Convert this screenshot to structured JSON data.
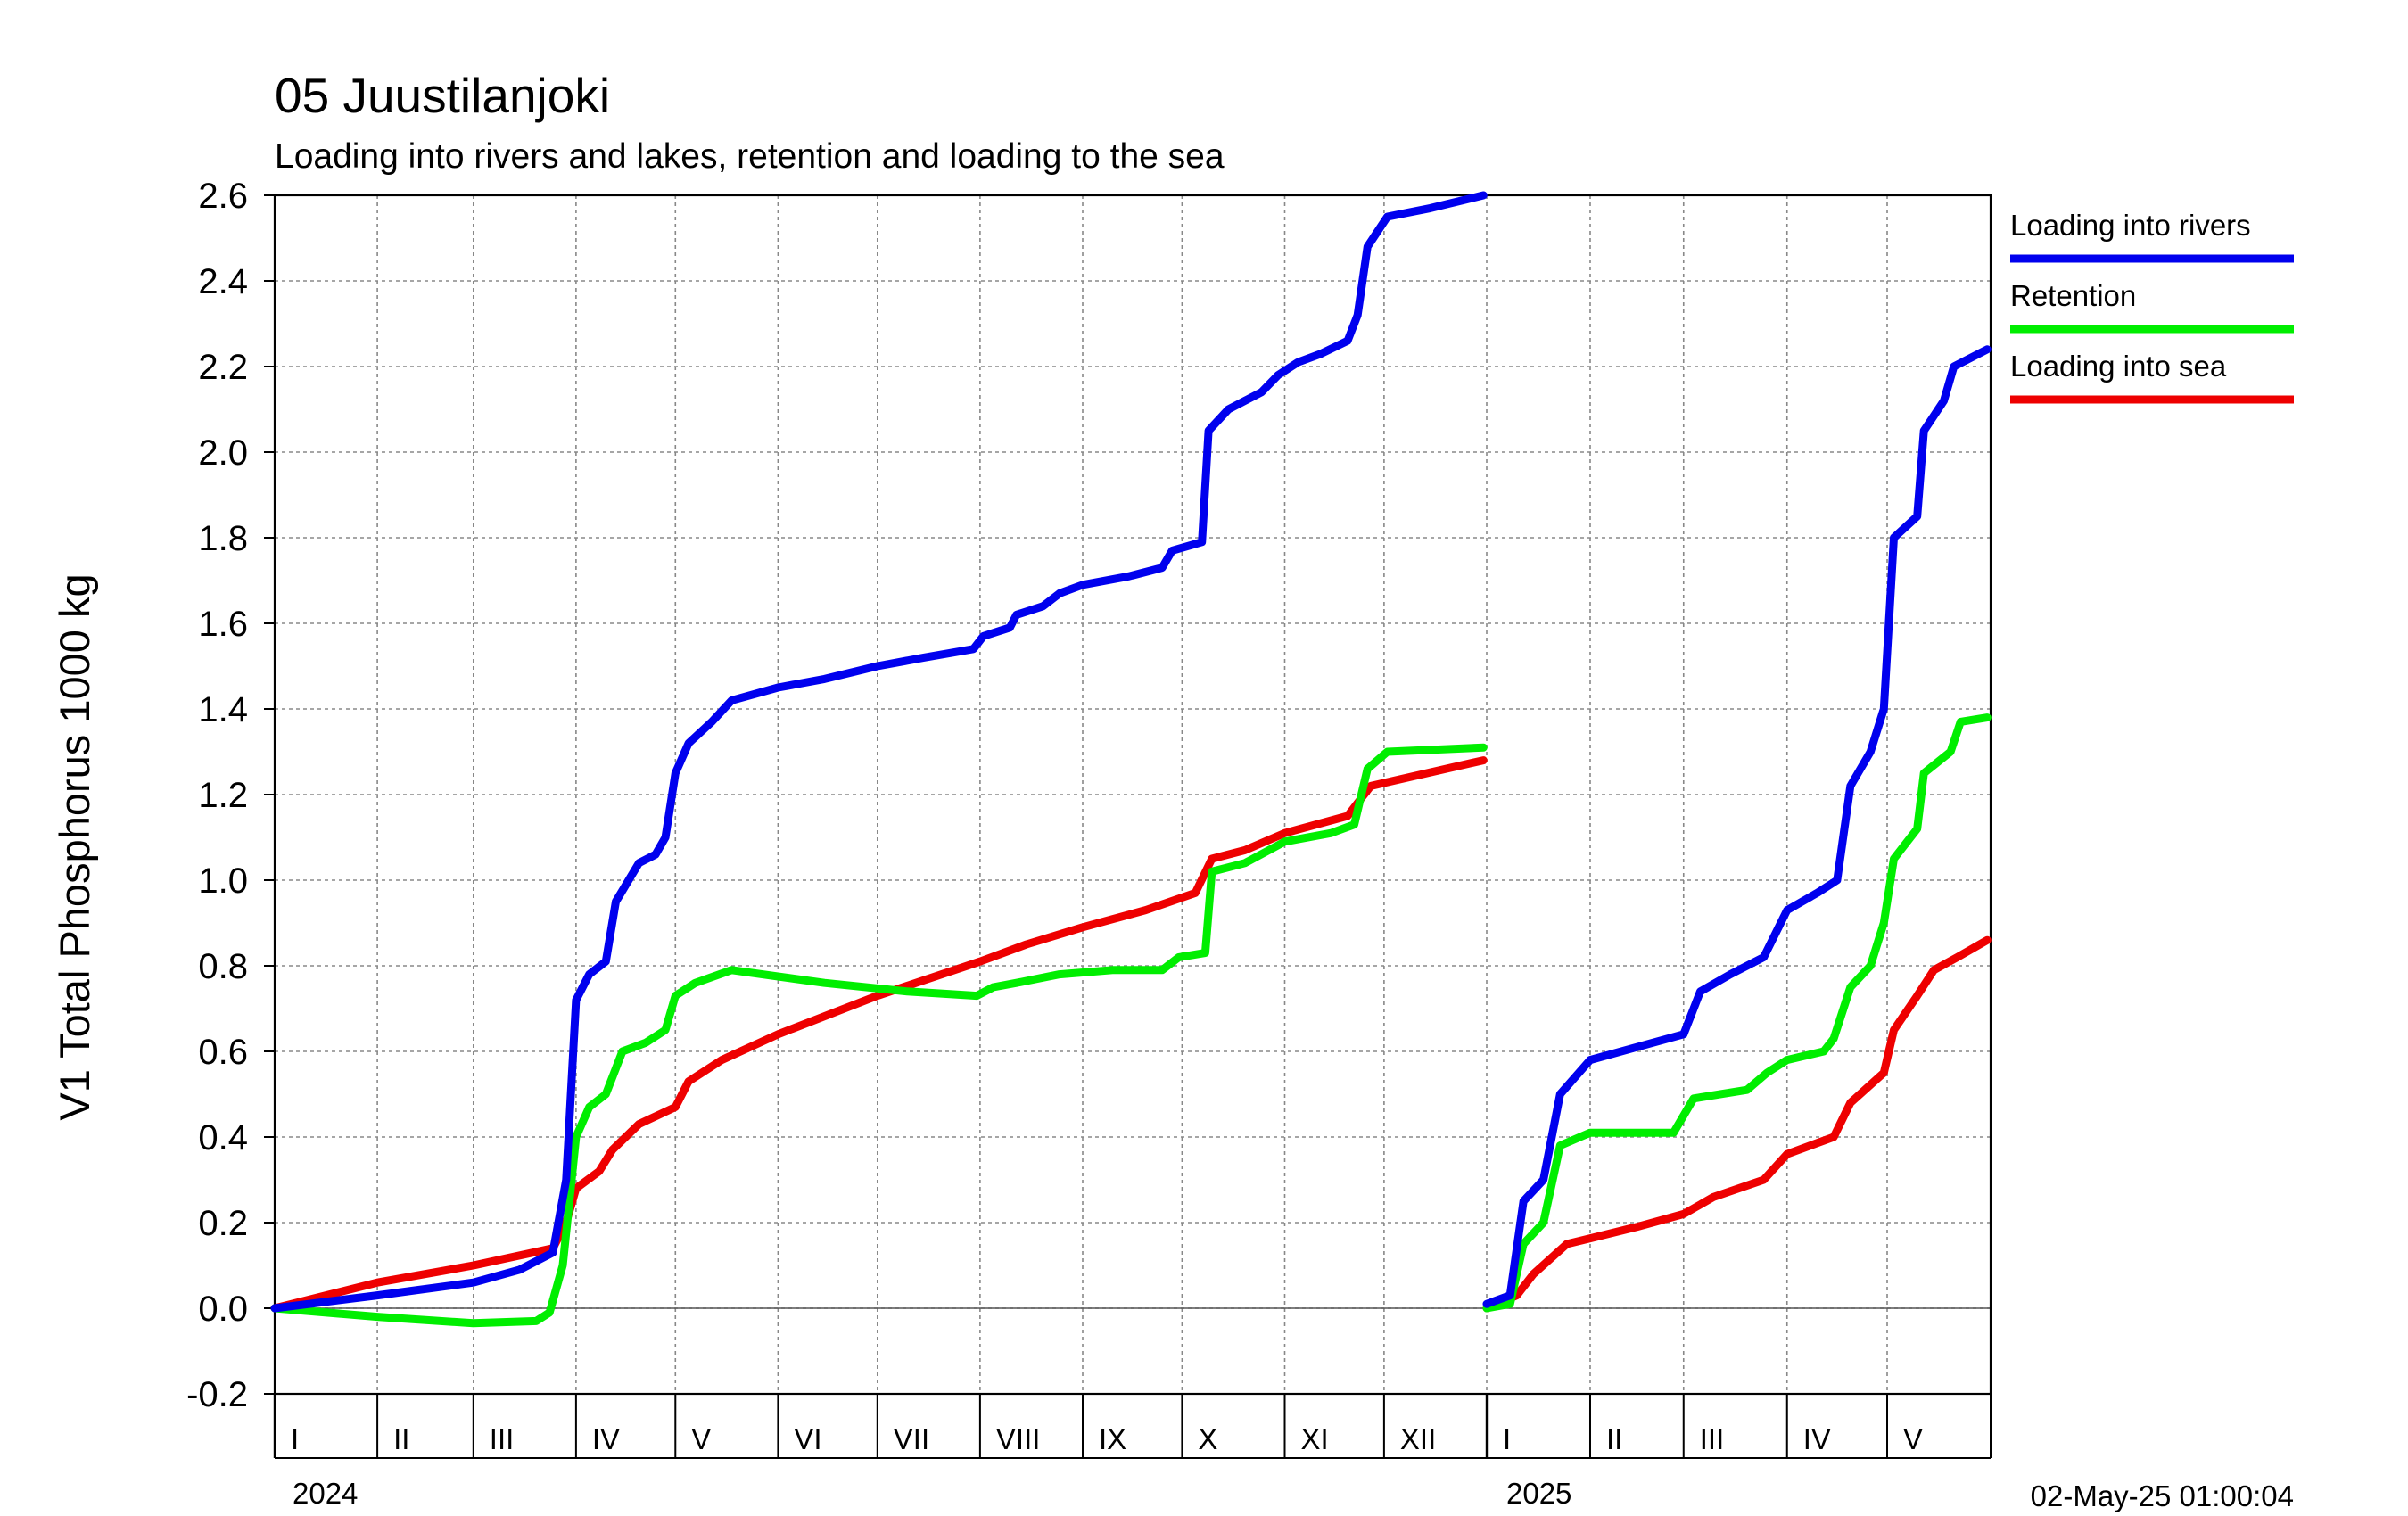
{
  "chart_data": {
    "type": "line",
    "title": "05 Juustilanjoki",
    "subtitle": "Loading into rivers and lakes, retention and loading to the sea",
    "ylabel": "V1 Total Phosphorus 1000 kg",
    "ylim": [
      -0.2,
      2.6
    ],
    "yticks": [
      "2.6",
      "2.4",
      "2.2",
      "2.0",
      "1.8",
      "1.6",
      "1.4",
      "1.2",
      "1.0",
      "0.8",
      "0.6",
      "0.4",
      "0.2",
      "0.0",
      "-0.2"
    ],
    "grid": true,
    "legend_position": "right",
    "years": [
      "2024",
      "2025"
    ],
    "month_labels_2024": [
      "I",
      "II",
      "III",
      "IV",
      "V",
      "VI",
      "VII",
      "VIII",
      "IX",
      "X",
      "XI",
      "XII"
    ],
    "month_labels_2025": [
      "I",
      "II",
      "III",
      "IV",
      "V"
    ],
    "timestamp": "02-May-25 01:00:04",
    "series": [
      {
        "name": "Loading into rivers",
        "color": "#0000ee",
        "segments": [
          [
            [
              "2024-01-01",
              0.0
            ],
            [
              "2024-02-01",
              0.03
            ],
            [
              "2024-03-01",
              0.06
            ],
            [
              "2024-03-15",
              0.09
            ],
            [
              "2024-03-25",
              0.13
            ],
            [
              "2024-03-29",
              0.3
            ],
            [
              "2024-04-01",
              0.72
            ],
            [
              "2024-04-05",
              0.78
            ],
            [
              "2024-04-10",
              0.81
            ],
            [
              "2024-04-13",
              0.95
            ],
            [
              "2024-04-20",
              1.04
            ],
            [
              "2024-04-25",
              1.06
            ],
            [
              "2024-04-28",
              1.1
            ],
            [
              "2024-05-01",
              1.25
            ],
            [
              "2024-05-05",
              1.32
            ],
            [
              "2024-05-12",
              1.37
            ],
            [
              "2024-05-18",
              1.42
            ],
            [
              "2024-06-01",
              1.45
            ],
            [
              "2024-06-15",
              1.47
            ],
            [
              "2024-07-01",
              1.5
            ],
            [
              "2024-07-15",
              1.52
            ],
            [
              "2024-07-30",
              1.54
            ],
            [
              "2024-08-02",
              1.57
            ],
            [
              "2024-08-10",
              1.59
            ],
            [
              "2024-08-12",
              1.62
            ],
            [
              "2024-08-20",
              1.64
            ],
            [
              "2024-08-25",
              1.67
            ],
            [
              "2024-09-01",
              1.69
            ],
            [
              "2024-09-15",
              1.71
            ],
            [
              "2024-09-25",
              1.73
            ],
            [
              "2024-09-28",
              1.77
            ],
            [
              "2024-10-07",
              1.79
            ],
            [
              "2024-10-09",
              2.05
            ],
            [
              "2024-10-15",
              2.1
            ],
            [
              "2024-10-20",
              2.12
            ],
            [
              "2024-10-25",
              2.14
            ],
            [
              "2024-10-30",
              2.18
            ],
            [
              "2024-11-05",
              2.21
            ],
            [
              "2024-11-12",
              2.23
            ],
            [
              "2024-11-20",
              2.26
            ],
            [
              "2024-11-23",
              2.32
            ],
            [
              "2024-11-26",
              2.48
            ],
            [
              "2024-12-02",
              2.55
            ],
            [
              "2024-12-15",
              2.57
            ],
            [
              "2024-12-31",
              2.6
            ]
          ],
          [
            [
              "2025-01-01",
              0.01
            ],
            [
              "2025-01-08",
              0.03
            ],
            [
              "2025-01-12",
              0.25
            ],
            [
              "2025-01-18",
              0.3
            ],
            [
              "2025-01-23",
              0.5
            ],
            [
              "2025-02-01",
              0.58
            ],
            [
              "2025-02-15",
              0.61
            ],
            [
              "2025-03-01",
              0.64
            ],
            [
              "2025-03-06",
              0.74
            ],
            [
              "2025-03-15",
              0.78
            ],
            [
              "2025-03-25",
              0.82
            ],
            [
              "2025-04-01",
              0.93
            ],
            [
              "2025-04-10",
              0.97
            ],
            [
              "2025-04-16",
              1.0
            ],
            [
              "2025-04-20",
              1.22
            ],
            [
              "2025-04-26",
              1.3
            ],
            [
              "2025-04-30",
              1.4
            ],
            [
              "2025-05-03",
              1.8
            ],
            [
              "2025-05-10",
              1.85
            ],
            [
              "2025-05-12",
              2.05
            ],
            [
              "2025-05-18",
              2.12
            ],
            [
              "2025-05-21",
              2.2
            ],
            [
              "2025-05-31",
              2.24
            ]
          ]
        ]
      },
      {
        "name": "Retention",
        "color": "#00ee00",
        "segments": [
          [
            [
              "2024-01-01",
              0.0
            ],
            [
              "2024-02-01",
              -0.02
            ],
            [
              "2024-03-01",
              -0.035
            ],
            [
              "2024-03-20",
              -0.03
            ],
            [
              "2024-03-24",
              -0.01
            ],
            [
              "2024-03-28",
              0.1
            ],
            [
              "2024-04-01",
              0.4
            ],
            [
              "2024-04-05",
              0.47
            ],
            [
              "2024-04-10",
              0.5
            ],
            [
              "2024-04-15",
              0.6
            ],
            [
              "2024-04-22",
              0.62
            ],
            [
              "2024-04-28",
              0.65
            ],
            [
              "2024-05-01",
              0.73
            ],
            [
              "2024-05-07",
              0.76
            ],
            [
              "2024-05-18",
              0.79
            ],
            [
              "2024-06-15",
              0.76
            ],
            [
              "2024-07-10",
              0.74
            ],
            [
              "2024-07-31",
              0.73
            ],
            [
              "2024-08-05",
              0.75
            ],
            [
              "2024-08-12",
              0.76
            ],
            [
              "2024-08-25",
              0.78
            ],
            [
              "2024-09-10",
              0.79
            ],
            [
              "2024-09-25",
              0.79
            ],
            [
              "2024-09-30",
              0.82
            ],
            [
              "2024-10-08",
              0.83
            ],
            [
              "2024-10-10",
              1.02
            ],
            [
              "2024-10-20",
              1.04
            ],
            [
              "2024-11-01",
              1.09
            ],
            [
              "2024-11-15",
              1.11
            ],
            [
              "2024-11-22",
              1.13
            ],
            [
              "2024-11-26",
              1.26
            ],
            [
              "2024-12-02",
              1.3
            ],
            [
              "2024-12-31",
              1.31
            ]
          ],
          [
            [
              "2025-01-01",
              0.0
            ],
            [
              "2025-01-08",
              0.01
            ],
            [
              "2025-01-12",
              0.15
            ],
            [
              "2025-01-18",
              0.2
            ],
            [
              "2025-01-23",
              0.38
            ],
            [
              "2025-02-01",
              0.41
            ],
            [
              "2025-02-26",
              0.41
            ],
            [
              "2025-03-04",
              0.49
            ],
            [
              "2025-03-20",
              0.51
            ],
            [
              "2025-03-26",
              0.55
            ],
            [
              "2025-04-01",
              0.58
            ],
            [
              "2025-04-12",
              0.6
            ],
            [
              "2025-04-15",
              0.63
            ],
            [
              "2025-04-20",
              0.75
            ],
            [
              "2025-04-26",
              0.8
            ],
            [
              "2025-04-30",
              0.9
            ],
            [
              "2025-05-03",
              1.05
            ],
            [
              "2025-05-10",
              1.12
            ],
            [
              "2025-05-12",
              1.25
            ],
            [
              "2025-05-20",
              1.3
            ],
            [
              "2025-05-23",
              1.37
            ],
            [
              "2025-05-31",
              1.38
            ]
          ]
        ]
      },
      {
        "name": "Loading into sea",
        "color": "#ee0000",
        "segments": [
          [
            [
              "2024-01-01",
              0.0
            ],
            [
              "2024-02-01",
              0.06
            ],
            [
              "2024-03-01",
              0.1
            ],
            [
              "2024-03-25",
              0.14
            ],
            [
              "2024-03-29",
              0.2
            ],
            [
              "2024-04-01",
              0.28
            ],
            [
              "2024-04-08",
              0.32
            ],
            [
              "2024-04-12",
              0.37
            ],
            [
              "2024-04-20",
              0.43
            ],
            [
              "2024-05-01",
              0.47
            ],
            [
              "2024-05-05",
              0.53
            ],
            [
              "2024-05-15",
              0.58
            ],
            [
              "2024-06-01",
              0.64
            ],
            [
              "2024-07-01",
              0.73
            ],
            [
              "2024-08-01",
              0.81
            ],
            [
              "2024-08-15",
              0.85
            ],
            [
              "2024-09-01",
              0.89
            ],
            [
              "2024-09-20",
              0.93
            ],
            [
              "2024-10-05",
              0.97
            ],
            [
              "2024-10-10",
              1.05
            ],
            [
              "2024-10-20",
              1.07
            ],
            [
              "2024-11-01",
              1.11
            ],
            [
              "2024-11-20",
              1.15
            ],
            [
              "2024-11-27",
              1.22
            ],
            [
              "2024-12-31",
              1.28
            ]
          ],
          [
            [
              "2025-01-01",
              0.0
            ],
            [
              "2025-01-10",
              0.03
            ],
            [
              "2025-01-15",
              0.08
            ],
            [
              "2025-01-25",
              0.15
            ],
            [
              "2025-02-15",
              0.19
            ],
            [
              "2025-03-01",
              0.22
            ],
            [
              "2025-03-10",
              0.26
            ],
            [
              "2025-03-25",
              0.3
            ],
            [
              "2025-04-01",
              0.36
            ],
            [
              "2025-04-15",
              0.4
            ],
            [
              "2025-04-20",
              0.48
            ],
            [
              "2025-04-30",
              0.55
            ],
            [
              "2025-05-03",
              0.65
            ],
            [
              "2025-05-10",
              0.73
            ],
            [
              "2025-05-15",
              0.79
            ],
            [
              "2025-05-22",
              0.82
            ],
            [
              "2025-05-31",
              0.86
            ]
          ]
        ]
      }
    ]
  }
}
